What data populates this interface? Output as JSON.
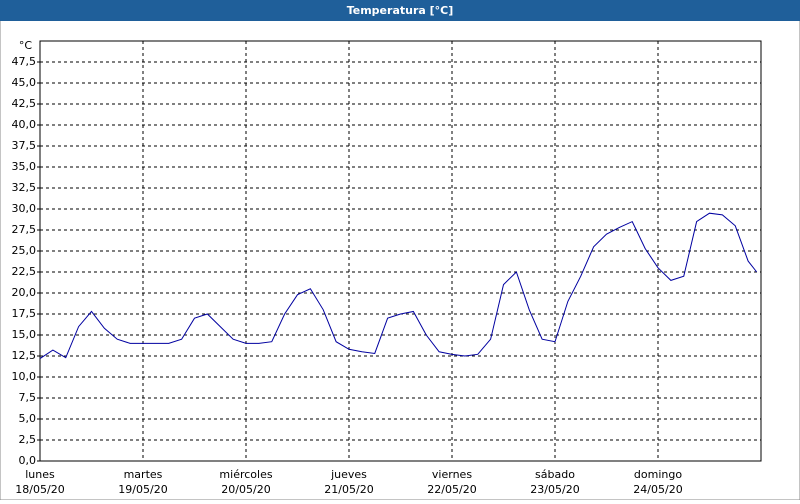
{
  "chart_data": {
    "type": "line",
    "title": "Temperatura [°C]",
    "y_unit": "°C",
    "x": [
      0,
      3,
      6,
      9,
      12,
      15,
      18,
      21,
      24,
      27,
      30,
      33,
      36,
      39,
      42,
      45,
      48,
      51,
      54,
      57,
      60,
      63,
      66,
      69,
      72,
      75,
      78,
      81,
      84,
      87,
      90,
      93,
      96,
      99,
      102,
      105,
      108,
      111,
      114,
      117,
      120,
      123,
      126,
      129,
      132,
      135,
      138,
      141,
      144,
      147,
      150,
      153,
      156,
      159,
      162,
      165,
      167
    ],
    "series": [
      {
        "name": "Temperatura",
        "color": "#0000a0",
        "values": [
          12.2,
          13.2,
          12.3,
          16.0,
          17.8,
          15.8,
          14.5,
          14.0,
          14.0,
          14.0,
          14.0,
          14.5,
          17.0,
          17.5,
          16.0,
          14.5,
          14.0,
          14.0,
          14.2,
          17.5,
          19.8,
          20.5,
          18.0,
          14.2,
          13.3,
          13.0,
          12.8,
          17.0,
          17.5,
          17.8,
          15.0,
          13.0,
          12.7,
          12.5,
          12.7,
          14.5,
          21.0,
          22.5,
          18.0,
          14.5,
          14.2,
          19.0,
          22.0,
          25.5,
          27.0,
          27.8,
          28.5,
          25.3,
          23.0,
          21.5,
          22.0,
          28.5,
          29.5,
          29.3,
          28.0,
          23.8,
          22.5
        ]
      }
    ],
    "xlim": [
      0,
      168
    ],
    "xticks": [
      {
        "value": 0,
        "label": "lunes",
        "sublabel": "18/05/20"
      },
      {
        "value": 24,
        "label": "martes",
        "sublabel": "19/05/20"
      },
      {
        "value": 48,
        "label": "miércoles",
        "sublabel": "20/05/20"
      },
      {
        "value": 72,
        "label": "jueves",
        "sublabel": "21/05/20"
      },
      {
        "value": 96,
        "label": "viernes",
        "sublabel": "22/05/20"
      },
      {
        "value": 120,
        "label": "sábado",
        "sublabel": "23/05/20"
      },
      {
        "value": 144,
        "label": "domingo",
        "sublabel": "24/05/20"
      }
    ],
    "ylim": [
      0,
      50
    ],
    "yticks": [
      {
        "value": 0,
        "label": "0,0"
      },
      {
        "value": 2.5,
        "label": "2,5"
      },
      {
        "value": 5,
        "label": "5,0"
      },
      {
        "value": 7.5,
        "label": "7,5"
      },
      {
        "value": 10,
        "label": "10,0"
      },
      {
        "value": 12.5,
        "label": "12,5"
      },
      {
        "value": 15,
        "label": "15,0"
      },
      {
        "value": 17.5,
        "label": "17,5"
      },
      {
        "value": 20,
        "label": "20,0"
      },
      {
        "value": 22.5,
        "label": "22,5"
      },
      {
        "value": 25,
        "label": "25,0"
      },
      {
        "value": 27.5,
        "label": "27,5"
      },
      {
        "value": 30,
        "label": "30,0"
      },
      {
        "value": 32.5,
        "label": "32,5"
      },
      {
        "value": 35,
        "label": "35,0"
      },
      {
        "value": 37.5,
        "label": "37,5"
      },
      {
        "value": 40,
        "label": "40,0"
      },
      {
        "value": 42.5,
        "label": "42,5"
      },
      {
        "value": 45,
        "label": "45,0"
      },
      {
        "value": 47.5,
        "label": "47,5"
      }
    ],
    "grid": true
  }
}
